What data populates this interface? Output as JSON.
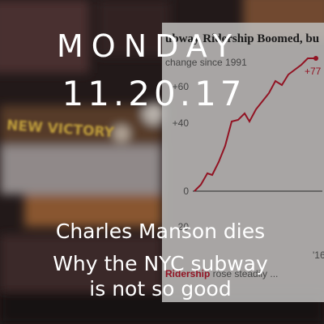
{
  "header": {
    "day": "MONDAY",
    "date": "11.20.17"
  },
  "headlines": [
    "Charles Manson dies",
    "Why the NYC subway",
    "is not so good"
  ],
  "background_photo": {
    "sign": "NEW VICTORY"
  },
  "background_chart": {
    "title": "ubway Ridership Boomed, bu",
    "subtitle": "change since 1991",
    "axis_labels": [
      "+60",
      "+40",
      "0",
      "-20"
    ],
    "end_label": "+77",
    "x_label": "'16",
    "caption_strong": "Ridership",
    "caption_rest": " rose steadily ..."
  }
}
